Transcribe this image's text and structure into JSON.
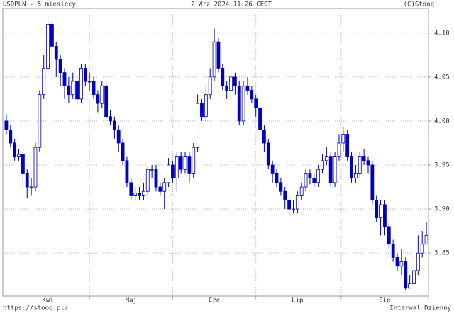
{
  "header": {
    "left": "USDPLN - 5 miesiecy",
    "center": "2 Wrz 2024 11:26 CEST",
    "right": "(C)Stooq"
  },
  "footer": {
    "left": "https://stooq.pl/",
    "right": "Interwal Dzienny"
  },
  "chart_data": {
    "type": "candlestick",
    "categories": [
      null,
      null,
      null,
      null,
      null,
      null,
      null,
      null,
      null,
      null,
      "Kwi",
      null,
      null,
      null,
      null,
      null,
      null,
      null,
      null,
      null,
      null,
      null,
      null,
      null,
      null,
      null,
      null,
      null,
      null,
      null,
      "Maj",
      null,
      null,
      null,
      null,
      null,
      null,
      null,
      null,
      null,
      null,
      null,
      null,
      null,
      null,
      null,
      null,
      null,
      null,
      null,
      "Cze",
      null,
      null,
      null,
      null,
      null,
      null,
      null,
      null,
      null,
      null,
      null,
      null,
      null,
      null,
      null,
      null,
      null,
      null,
      null,
      "Lip",
      null,
      null,
      null,
      null,
      null,
      null,
      null,
      null,
      null,
      null,
      null,
      null,
      null,
      null,
      null,
      null,
      null,
      null,
      null,
      null,
      "Sie",
      null,
      null,
      null,
      null,
      null,
      null,
      null,
      null,
      null,
      null
    ],
    "open": [
      4.0,
      3.99,
      3.975,
      3.96,
      3.962,
      3.94,
      3.925,
      3.925,
      3.97,
      4.03,
      4.06,
      4.11,
      4.085,
      4.07,
      4.055,
      4.04,
      4.03,
      4.045,
      4.025,
      4.06,
      4.045,
      4.045,
      4.03,
      4.02,
      4.04,
      4.005,
      4.0,
      3.99,
      3.975,
      3.955,
      3.93,
      3.915,
      3.918,
      3.915,
      3.92,
      3.945,
      3.945,
      3.925,
      3.92,
      3.93,
      3.95,
      3.935,
      3.96,
      3.945,
      3.96,
      3.94,
      3.97,
      4.02,
      4.005,
      4.03,
      4.05,
      4.09,
      4.06,
      4.04,
      4.035,
      4.05,
      4.04,
      4.0,
      4.04,
      4.035,
      4.025,
      4.015,
      3.99,
      3.975,
      3.95,
      3.94,
      3.93,
      3.92,
      3.91,
      3.9,
      3.9,
      3.915,
      3.925,
      3.94,
      3.935,
      3.93,
      3.945,
      3.955,
      3.96,
      3.93,
      3.96,
      3.975,
      3.985,
      3.96,
      3.935,
      3.94,
      3.96,
      3.955,
      3.95,
      3.91,
      3.89,
      3.905,
      3.88,
      3.86,
      3.845,
      3.835,
      3.84,
      3.81,
      3.815,
      3.83,
      3.85,
      3.86
    ],
    "high": [
      4.008,
      3.995,
      3.98,
      3.968,
      3.966,
      3.945,
      3.935,
      3.975,
      4.035,
      4.075,
      4.12,
      4.115,
      4.09,
      4.075,
      4.06,
      4.05,
      4.055,
      4.05,
      4.065,
      4.065,
      4.055,
      4.05,
      4.035,
      4.045,
      4.045,
      4.012,
      4.005,
      3.995,
      3.98,
      3.96,
      3.935,
      3.925,
      3.925,
      3.93,
      3.948,
      3.95,
      3.95,
      3.93,
      3.935,
      3.958,
      3.955,
      3.965,
      3.965,
      3.965,
      3.965,
      3.975,
      4.03,
      4.025,
      4.04,
      4.06,
      4.105,
      4.095,
      4.065,
      4.045,
      4.055,
      4.055,
      4.045,
      4.045,
      4.05,
      4.04,
      4.03,
      4.02,
      3.995,
      3.98,
      3.955,
      3.945,
      3.935,
      3.925,
      3.915,
      3.91,
      3.92,
      3.93,
      3.945,
      3.945,
      3.94,
      3.95,
      3.962,
      3.97,
      3.965,
      3.965,
      3.985,
      3.993,
      3.99,
      3.965,
      3.95,
      3.965,
      3.968,
      3.96,
      3.955,
      3.915,
      3.91,
      3.91,
      3.885,
      3.865,
      3.85,
      3.855,
      3.845,
      3.825,
      3.835,
      3.87,
      3.875,
      3.885
    ],
    "low": [
      3.985,
      3.97,
      3.955,
      3.955,
      3.925,
      3.912,
      3.915,
      3.92,
      3.965,
      4.025,
      4.055,
      4.045,
      4.05,
      4.04,
      4.025,
      4.02,
      4.025,
      4.02,
      4.02,
      4.04,
      4.035,
      4.025,
      4.01,
      4.015,
      4.0,
      3.995,
      3.98,
      3.965,
      3.95,
      3.925,
      3.91,
      3.91,
      3.91,
      3.91,
      3.915,
      3.935,
      3.92,
      3.915,
      3.9,
      3.925,
      3.93,
      3.92,
      3.94,
      3.94,
      3.93,
      3.935,
      3.965,
      4.0,
      4.0,
      4.025,
      4.045,
      4.055,
      4.035,
      4.025,
      4.03,
      4.03,
      3.995,
      3.995,
      4.03,
      4.02,
      4.005,
      3.985,
      3.965,
      3.945,
      3.93,
      3.925,
      3.915,
      3.9,
      3.89,
      3.895,
      3.895,
      3.91,
      3.92,
      3.928,
      3.925,
      3.925,
      3.94,
      3.95,
      3.925,
      3.925,
      3.955,
      3.965,
      3.955,
      3.93,
      3.93,
      3.935,
      3.95,
      3.94,
      3.905,
      3.885,
      3.87,
      3.87,
      3.855,
      3.84,
      3.83,
      3.825,
      3.808,
      3.81,
      3.81,
      3.825,
      3.845,
      3.86
    ],
    "close": [
      3.99,
      3.975,
      3.96,
      3.962,
      3.94,
      3.925,
      3.925,
      3.97,
      4.03,
      4.06,
      4.11,
      4.085,
      4.07,
      4.055,
      4.04,
      4.03,
      4.045,
      4.025,
      4.06,
      4.045,
      4.045,
      4.03,
      4.02,
      4.04,
      4.005,
      4.0,
      3.99,
      3.975,
      3.955,
      3.93,
      3.915,
      3.918,
      3.915,
      3.92,
      3.945,
      3.945,
      3.925,
      3.92,
      3.93,
      3.95,
      3.935,
      3.96,
      3.945,
      3.96,
      3.94,
      3.97,
      4.02,
      4.005,
      4.03,
      4.05,
      4.09,
      4.06,
      4.04,
      4.035,
      4.05,
      4.04,
      4.0,
      4.04,
      4.035,
      4.025,
      4.015,
      3.99,
      3.975,
      3.95,
      3.94,
      3.93,
      3.92,
      3.91,
      3.9,
      3.9,
      3.915,
      3.925,
      3.94,
      3.935,
      3.93,
      3.945,
      3.955,
      3.96,
      3.93,
      3.96,
      3.975,
      3.985,
      3.96,
      3.935,
      3.94,
      3.96,
      3.955,
      3.95,
      3.91,
      3.89,
      3.905,
      3.88,
      3.86,
      3.845,
      3.835,
      3.84,
      3.81,
      3.815,
      3.83,
      3.85,
      3.86,
      3.87
    ],
    "up_color": "#ffffff",
    "down_color": "#0000cc",
    "line_color": "#0000aa",
    "ylim": [
      3.801,
      4.128
    ],
    "yticks": [
      3.85,
      {
        "value": 3.9,
        "label": "3.90"
      },
      3.95,
      {
        "value": 4,
        "label": "4.00"
      },
      4.05,
      {
        "value": 4.1,
        "label": "4.10"
      }
    ],
    "grid": true
  }
}
